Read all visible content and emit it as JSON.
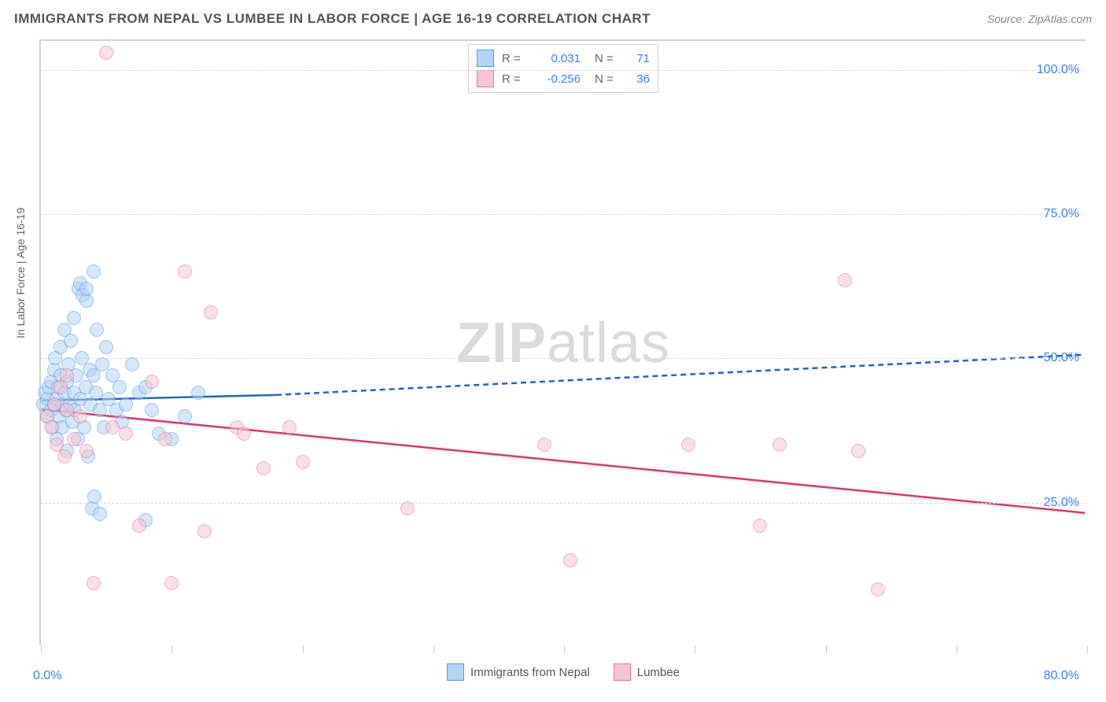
{
  "title": "IMMIGRANTS FROM NEPAL VS LUMBEE IN LABOR FORCE | AGE 16-19 CORRELATION CHART",
  "source_label": "Source: ",
  "source_value": "ZipAtlas.com",
  "ylabel": "In Labor Force | Age 16-19",
  "watermark_prefix": "ZIP",
  "watermark_suffix": "atlas",
  "chart": {
    "type": "scatter",
    "xlim": [
      0,
      80
    ],
    "ylim": [
      0,
      105
    ],
    "y_gridlines": [
      25,
      50,
      75,
      100
    ],
    "y_tick_labels": [
      "25.0%",
      "50.0%",
      "75.0%",
      "100.0%"
    ],
    "x_ticks": [
      0,
      10,
      20,
      30,
      40,
      50,
      60,
      70,
      80
    ],
    "x_visible_labels": {
      "0": "0.0%",
      "80": "80.0%"
    },
    "background_color": "#ffffff",
    "grid_color": "#dddddd",
    "border_color": "#d0d0d0",
    "marker_radius": 9,
    "marker_border_width": 1.5,
    "series": [
      {
        "name": "Immigrants from Nepal",
        "fill": "#b3d4f5",
        "stroke": "#5a9bd8",
        "fill_opacity": 0.55,
        "R": "0.031",
        "N": "71",
        "trend": {
          "solid": {
            "x1": 0,
            "y1": 42.5,
            "x2": 18,
            "y2": 43.5
          },
          "dashed": {
            "x1": 18,
            "y1": 43.5,
            "x2": 80,
            "y2": 50.5
          },
          "color": "#2563c9",
          "width": 2.5,
          "dash": "7,5"
        },
        "points": [
          [
            0.2,
            42
          ],
          [
            0.3,
            44
          ],
          [
            0.5,
            40
          ],
          [
            0.5,
            43
          ],
          [
            0.6,
            45
          ],
          [
            0.8,
            41
          ],
          [
            0.8,
            46
          ],
          [
            0.9,
            38
          ],
          [
            1.0,
            42
          ],
          [
            1.0,
            48
          ],
          [
            1.1,
            50
          ],
          [
            1.2,
            36
          ],
          [
            1.2,
            43
          ],
          [
            1.3,
            45
          ],
          [
            1.4,
            40
          ],
          [
            1.5,
            47
          ],
          [
            1.5,
            52
          ],
          [
            1.6,
            38
          ],
          [
            1.7,
            42
          ],
          [
            1.8,
            44
          ],
          [
            1.8,
            55
          ],
          [
            1.9,
            41
          ],
          [
            2.0,
            46
          ],
          [
            2.0,
            34
          ],
          [
            2.1,
            49
          ],
          [
            2.2,
            42
          ],
          [
            2.3,
            53
          ],
          [
            2.4,
            39
          ],
          [
            2.5,
            44
          ],
          [
            2.5,
            57
          ],
          [
            2.6,
            41
          ],
          [
            2.7,
            47
          ],
          [
            2.8,
            36
          ],
          [
            2.9,
            62
          ],
          [
            3.0,
            43
          ],
          [
            3.0,
            63
          ],
          [
            3.1,
            50
          ],
          [
            3.2,
            61
          ],
          [
            3.3,
            38
          ],
          [
            3.4,
            45
          ],
          [
            3.5,
            60
          ],
          [
            3.5,
            62
          ],
          [
            3.6,
            33
          ],
          [
            3.7,
            48
          ],
          [
            3.8,
            42
          ],
          [
            3.9,
            24
          ],
          [
            4.0,
            65
          ],
          [
            4.0,
            47
          ],
          [
            4.1,
            26
          ],
          [
            4.2,
            44
          ],
          [
            4.3,
            55
          ],
          [
            4.5,
            41
          ],
          [
            4.5,
            23
          ],
          [
            4.7,
            49
          ],
          [
            4.8,
            38
          ],
          [
            5.0,
            52
          ],
          [
            5.2,
            43
          ],
          [
            5.5,
            47
          ],
          [
            5.8,
            41
          ],
          [
            6.0,
            45
          ],
          [
            6.2,
            39
          ],
          [
            6.5,
            42
          ],
          [
            7.0,
            49
          ],
          [
            7.5,
            44
          ],
          [
            8.0,
            45
          ],
          [
            8.0,
            22
          ],
          [
            8.5,
            41
          ],
          [
            9.0,
            37
          ],
          [
            10.0,
            36
          ],
          [
            11.0,
            40
          ],
          [
            12.0,
            44
          ]
        ]
      },
      {
        "name": "Lumbee",
        "fill": "#f5c5d4",
        "stroke": "#e47a9a",
        "fill_opacity": 0.55,
        "R": "-0.256",
        "N": "36",
        "trend": {
          "solid": {
            "x1": 0,
            "y1": 41,
            "x2": 80,
            "y2": 23
          },
          "dashed": null,
          "color": "#e6336b",
          "width": 2.5
        },
        "points": [
          [
            0.5,
            40
          ],
          [
            0.8,
            38
          ],
          [
            1.0,
            42
          ],
          [
            1.2,
            35
          ],
          [
            1.5,
            45
          ],
          [
            1.8,
            33
          ],
          [
            2.0,
            41
          ],
          [
            2.0,
            47
          ],
          [
            2.5,
            36
          ],
          [
            3.0,
            40
          ],
          [
            3.5,
            34
          ],
          [
            4.0,
            11
          ],
          [
            5.0,
            103
          ],
          [
            5.5,
            38
          ],
          [
            6.5,
            37
          ],
          [
            7.5,
            21
          ],
          [
            8.5,
            46
          ],
          [
            9.5,
            36
          ],
          [
            10.0,
            11
          ],
          [
            11.0,
            65
          ],
          [
            12.5,
            20
          ],
          [
            13.0,
            58
          ],
          [
            15.0,
            38
          ],
          [
            15.5,
            37
          ],
          [
            17.0,
            31
          ],
          [
            19.0,
            38
          ],
          [
            20.0,
            32
          ],
          [
            28.0,
            24
          ],
          [
            38.5,
            35
          ],
          [
            40.5,
            15
          ],
          [
            49.5,
            35
          ],
          [
            55.0,
            21
          ],
          [
            56.5,
            35
          ],
          [
            61.5,
            63.5
          ],
          [
            62.5,
            34
          ],
          [
            64.0,
            10
          ]
        ]
      }
    ]
  },
  "legend_top": {
    "r_label": "R =",
    "n_label": "N ="
  },
  "colors": {
    "text_muted": "#666666",
    "accent": "#3b82f6"
  }
}
